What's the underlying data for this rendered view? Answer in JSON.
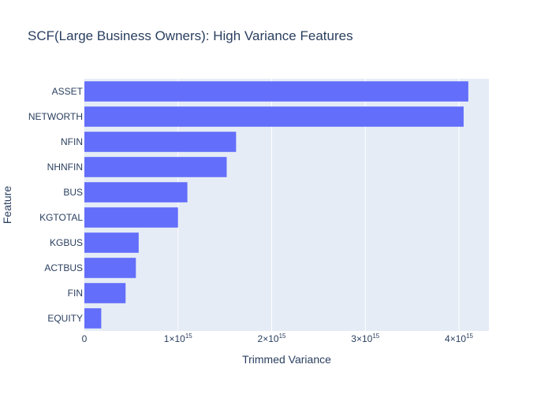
{
  "chart_data": {
    "type": "bar",
    "orientation": "horizontal",
    "title": "SCF(Large Business Owners): High Variance Features",
    "xlabel": "Trimmed Variance",
    "ylabel": "Feature",
    "categories": [
      "EQUITY",
      "FIN",
      "ACTBUS",
      "KGBUS",
      "KGTOTAL",
      "BUS",
      "NHNFIN",
      "NFIN",
      "NETWORTH",
      "ASSET"
    ],
    "values": [
      180000000000000.0,
      440000000000000.0,
      550000000000000.0,
      580000000000000.0,
      1000000000000000.0,
      1100000000000000.0,
      1520000000000000.0,
      1620000000000000.0,
      4050000000000000.0,
      4100000000000000.0
    ],
    "xlim": [
      0,
      4320000000000000.0
    ],
    "xticks": [
      0,
      1000000000000000.0,
      2000000000000000.0,
      3000000000000000.0,
      4000000000000000.0
    ],
    "xtick_labels": [
      {
        "mantissa": "0",
        "exponent": ""
      },
      {
        "mantissa": "1×10",
        "exponent": "15"
      },
      {
        "mantissa": "2×10",
        "exponent": "15"
      },
      {
        "mantissa": "3×10",
        "exponent": "15"
      },
      {
        "mantissa": "4×10",
        "exponent": "15"
      }
    ],
    "grid": true,
    "colors": {
      "bar": "#636efa",
      "plot_bg": "#e5ecf6",
      "grid": "#ffffff",
      "text": "#2a3f5f"
    }
  }
}
